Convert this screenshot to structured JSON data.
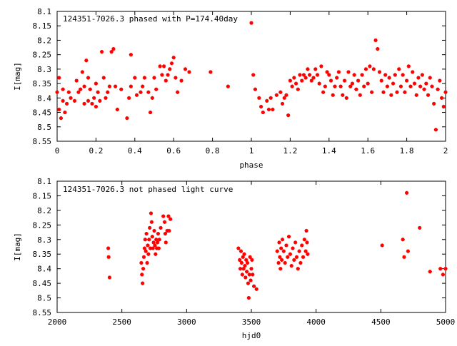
{
  "chart_data": [
    {
      "type": "scatter",
      "title": "124351-7026.3 phased with P=174.40day",
      "xlabel": "phase",
      "ylabel": "I[mag]",
      "xlim": [
        0,
        2
      ],
      "ylim": [
        8.55,
        8.1
      ],
      "y_inverted": true,
      "grid": false,
      "color": "#ff0000",
      "xticks": [
        "0",
        "0.2",
        "0.4",
        "0.6",
        "0.8",
        "1",
        "1.2",
        "1.4",
        "1.6",
        "1.8",
        "2"
      ],
      "yticks": [
        "8.1",
        "8.15",
        "8.2",
        "8.25",
        "8.3",
        "8.35",
        "8.4",
        "8.45",
        "8.5",
        "8.55"
      ],
      "points": [
        [
          0.0,
          8.38
        ],
        [
          0.01,
          8.33
        ],
        [
          0.01,
          8.44
        ],
        [
          0.02,
          8.47
        ],
        [
          0.03,
          8.37
        ],
        [
          0.03,
          8.41
        ],
        [
          0.04,
          8.45
        ],
        [
          0.05,
          8.42
        ],
        [
          0.06,
          8.38
        ],
        [
          0.07,
          8.4
        ],
        [
          0.09,
          8.41
        ],
        [
          0.1,
          8.34
        ],
        [
          0.11,
          8.38
        ],
        [
          0.12,
          8.37
        ],
        [
          0.13,
          8.31
        ],
        [
          0.14,
          8.36
        ],
        [
          0.14,
          8.42
        ],
        [
          0.15,
          8.27
        ],
        [
          0.16,
          8.33
        ],
        [
          0.16,
          8.41
        ],
        [
          0.17,
          8.37
        ],
        [
          0.18,
          8.42
        ],
        [
          0.19,
          8.4
        ],
        [
          0.2,
          8.35
        ],
        [
          0.2,
          8.43
        ],
        [
          0.21,
          8.38
        ],
        [
          0.22,
          8.41
        ],
        [
          0.23,
          8.24
        ],
        [
          0.24,
          8.33
        ],
        [
          0.25,
          8.4
        ],
        [
          0.26,
          8.38
        ],
        [
          0.27,
          8.36
        ],
        [
          0.28,
          8.24
        ],
        [
          0.29,
          8.23
        ],
        [
          0.3,
          8.36
        ],
        [
          0.31,
          8.44
        ],
        [
          0.33,
          8.37
        ],
        [
          0.36,
          8.47
        ],
        [
          0.37,
          8.4
        ],
        [
          0.38,
          8.36
        ],
        [
          0.38,
          8.25
        ],
        [
          0.4,
          8.33
        ],
        [
          0.41,
          8.39
        ],
        [
          0.43,
          8.38
        ],
        [
          0.44,
          8.36
        ],
        [
          0.45,
          8.33
        ],
        [
          0.47,
          8.38
        ],
        [
          0.48,
          8.45
        ],
        [
          0.49,
          8.4
        ],
        [
          0.5,
          8.33
        ],
        [
          0.51,
          8.37
        ],
        [
          0.53,
          8.29
        ],
        [
          0.54,
          8.32
        ],
        [
          0.55,
          8.29
        ],
        [
          0.56,
          8.34
        ],
        [
          0.57,
          8.32
        ],
        [
          0.58,
          8.3
        ],
        [
          0.59,
          8.28
        ],
        [
          0.6,
          8.26
        ],
        [
          0.61,
          8.33
        ],
        [
          0.62,
          8.38
        ],
        [
          0.64,
          8.34
        ],
        [
          0.66,
          8.3
        ],
        [
          0.68,
          8.31
        ],
        [
          0.79,
          8.31
        ],
        [
          0.88,
          8.36
        ],
        [
          1.0,
          8.14
        ],
        [
          1.01,
          8.32
        ],
        [
          1.02,
          8.37
        ],
        [
          1.04,
          8.4
        ],
        [
          1.05,
          8.43
        ],
        [
          1.06,
          8.45
        ],
        [
          1.08,
          8.41
        ],
        [
          1.09,
          8.44
        ],
        [
          1.1,
          8.4
        ],
        [
          1.11,
          8.44
        ],
        [
          1.13,
          8.39
        ],
        [
          1.15,
          8.38
        ],
        [
          1.16,
          8.42
        ],
        [
          1.17,
          8.4
        ],
        [
          1.18,
          8.39
        ],
        [
          1.19,
          8.46
        ],
        [
          1.2,
          8.34
        ],
        [
          1.21,
          8.36
        ],
        [
          1.22,
          8.33
        ],
        [
          1.23,
          8.35
        ],
        [
          1.24,
          8.37
        ],
        [
          1.25,
          8.32
        ],
        [
          1.26,
          8.34
        ],
        [
          1.27,
          8.32
        ],
        [
          1.28,
          8.33
        ],
        [
          1.29,
          8.3
        ],
        [
          1.3,
          8.32
        ],
        [
          1.31,
          8.34
        ],
        [
          1.32,
          8.33
        ],
        [
          1.33,
          8.3
        ],
        [
          1.34,
          8.32
        ],
        [
          1.35,
          8.35
        ],
        [
          1.36,
          8.29
        ],
        [
          1.37,
          8.38
        ],
        [
          1.38,
          8.36
        ],
        [
          1.39,
          8.31
        ],
        [
          1.4,
          8.32
        ],
        [
          1.41,
          8.34
        ],
        [
          1.42,
          8.39
        ],
        [
          1.43,
          8.36
        ],
        [
          1.44,
          8.33
        ],
        [
          1.45,
          8.31
        ],
        [
          1.46,
          8.36
        ],
        [
          1.47,
          8.39
        ],
        [
          1.48,
          8.34
        ],
        [
          1.49,
          8.4
        ],
        [
          1.5,
          8.31
        ],
        [
          1.51,
          8.36
        ],
        [
          1.52,
          8.35
        ],
        [
          1.53,
          8.32
        ],
        [
          1.54,
          8.37
        ],
        [
          1.55,
          8.34
        ],
        [
          1.56,
          8.39
        ],
        [
          1.57,
          8.32
        ],
        [
          1.58,
          8.36
        ],
        [
          1.59,
          8.3
        ],
        [
          1.6,
          8.35
        ],
        [
          1.61,
          8.29
        ],
        [
          1.62,
          8.38
        ],
        [
          1.63,
          8.3
        ],
        [
          1.64,
          8.2
        ],
        [
          1.65,
          8.23
        ],
        [
          1.66,
          8.31
        ],
        [
          1.67,
          8.34
        ],
        [
          1.68,
          8.38
        ],
        [
          1.69,
          8.32
        ],
        [
          1.7,
          8.36
        ],
        [
          1.71,
          8.33
        ],
        [
          1.72,
          8.39
        ],
        [
          1.73,
          8.35
        ],
        [
          1.74,
          8.32
        ],
        [
          1.75,
          8.38
        ],
        [
          1.76,
          8.3
        ],
        [
          1.77,
          8.36
        ],
        [
          1.78,
          8.32
        ],
        [
          1.79,
          8.38
        ],
        [
          1.8,
          8.34
        ],
        [
          1.81,
          8.29
        ],
        [
          1.82,
          8.36
        ],
        [
          1.83,
          8.31
        ],
        [
          1.84,
          8.35
        ],
        [
          1.85,
          8.39
        ],
        [
          1.86,
          8.33
        ],
        [
          1.87,
          8.36
        ],
        [
          1.88,
          8.32
        ],
        [
          1.89,
          8.37
        ],
        [
          1.9,
          8.35
        ],
        [
          1.91,
          8.39
        ],
        [
          1.92,
          8.33
        ],
        [
          1.93,
          8.36
        ],
        [
          1.94,
          8.42
        ],
        [
          1.95,
          8.51
        ],
        [
          1.96,
          8.37
        ],
        [
          1.97,
          8.34
        ],
        [
          1.98,
          8.4
        ],
        [
          1.99,
          8.43
        ],
        [
          2.0,
          8.38
        ]
      ]
    },
    {
      "type": "scatter",
      "title": "124351-7026.3 not phased light curve",
      "xlabel": "hjd0",
      "ylabel": "I[mag]",
      "xlim": [
        2000,
        5000
      ],
      "ylim": [
        8.55,
        8.1
      ],
      "y_inverted": true,
      "grid": false,
      "color": "#ff0000",
      "xticks": [
        "2000",
        "2500",
        "3000",
        "3500",
        "4000",
        "4500",
        "5000"
      ],
      "yticks": [
        "8.1",
        "8.15",
        "8.2",
        "8.25",
        "8.3",
        "8.35",
        "8.4",
        "8.45",
        "8.5",
        "8.55"
      ],
      "points": [
        [
          2395,
          8.33
        ],
        [
          2398,
          8.36
        ],
        [
          2405,
          8.43
        ],
        [
          2650,
          8.38
        ],
        [
          2655,
          8.42
        ],
        [
          2660,
          8.45
        ],
        [
          2665,
          8.4
        ],
        [
          2670,
          8.36
        ],
        [
          2675,
          8.33
        ],
        [
          2680,
          8.3
        ],
        [
          2685,
          8.34
        ],
        [
          2690,
          8.28
        ],
        [
          2695,
          8.38
        ],
        [
          2700,
          8.32
        ],
        [
          2705,
          8.35
        ],
        [
          2710,
          8.3
        ],
        [
          2715,
          8.26
        ],
        [
          2720,
          8.33
        ],
        [
          2725,
          8.21
        ],
        [
          2730,
          8.24
        ],
        [
          2735,
          8.29
        ],
        [
          2740,
          8.33
        ],
        [
          2745,
          8.31
        ],
        [
          2750,
          8.27
        ],
        [
          2755,
          8.32
        ],
        [
          2760,
          8.35
        ],
        [
          2765,
          8.3
        ],
        [
          2770,
          8.33
        ],
        [
          2775,
          8.31
        ],
        [
          2780,
          8.28
        ],
        [
          2785,
          8.33
        ],
        [
          2790,
          8.3
        ],
        [
          2800,
          8.26
        ],
        [
          2820,
          8.22
        ],
        [
          2830,
          8.24
        ],
        [
          2835,
          8.28
        ],
        [
          2840,
          8.31
        ],
        [
          2850,
          8.27
        ],
        [
          2860,
          8.22
        ],
        [
          2865,
          8.27
        ],
        [
          2875,
          8.23
        ],
        [
          3400,
          8.33
        ],
        [
          3410,
          8.37
        ],
        [
          3415,
          8.4
        ],
        [
          3420,
          8.34
        ],
        [
          3425,
          8.38
        ],
        [
          3430,
          8.42
        ],
        [
          3435,
          8.36
        ],
        [
          3440,
          8.4
        ],
        [
          3445,
          8.35
        ],
        [
          3450,
          8.39
        ],
        [
          3455,
          8.43
        ],
        [
          3460,
          8.37
        ],
        [
          3465,
          8.41
        ],
        [
          3470,
          8.38
        ],
        [
          3475,
          8.45
        ],
        [
          3480,
          8.5
        ],
        [
          3485,
          8.42
        ],
        [
          3490,
          8.36
        ],
        [
          3495,
          8.44
        ],
        [
          3500,
          8.4
        ],
        [
          3505,
          8.37
        ],
        [
          3510,
          8.42
        ],
        [
          3520,
          8.46
        ],
        [
          3540,
          8.47
        ],
        [
          3700,
          8.34
        ],
        [
          3710,
          8.38
        ],
        [
          3715,
          8.31
        ],
        [
          3720,
          8.36
        ],
        [
          3725,
          8.4
        ],
        [
          3730,
          8.33
        ],
        [
          3735,
          8.37
        ],
        [
          3740,
          8.3
        ],
        [
          3750,
          8.34
        ],
        [
          3760,
          8.38
        ],
        [
          3770,
          8.32
        ],
        [
          3780,
          8.36
        ],
        [
          3790,
          8.29
        ],
        [
          3800,
          8.35
        ],
        [
          3810,
          8.39
        ],
        [
          3820,
          8.33
        ],
        [
          3830,
          8.37
        ],
        [
          3840,
          8.31
        ],
        [
          3850,
          8.36
        ],
        [
          3860,
          8.4
        ],
        [
          3870,
          8.34
        ],
        [
          3880,
          8.38
        ],
        [
          3890,
          8.32
        ],
        [
          3900,
          8.36
        ],
        [
          3910,
          8.3
        ],
        [
          3920,
          8.34
        ],
        [
          3925,
          8.27
        ],
        [
          3930,
          8.31
        ],
        [
          3935,
          8.35
        ],
        [
          4510,
          8.32
        ],
        [
          4670,
          8.3
        ],
        [
          4680,
          8.36
        ],
        [
          4700,
          8.14
        ],
        [
          4710,
          8.34
        ],
        [
          4800,
          8.26
        ],
        [
          4880,
          8.41
        ],
        [
          4960,
          8.4
        ],
        [
          4980,
          8.42
        ],
        [
          5000,
          8.4
        ]
      ]
    }
  ]
}
